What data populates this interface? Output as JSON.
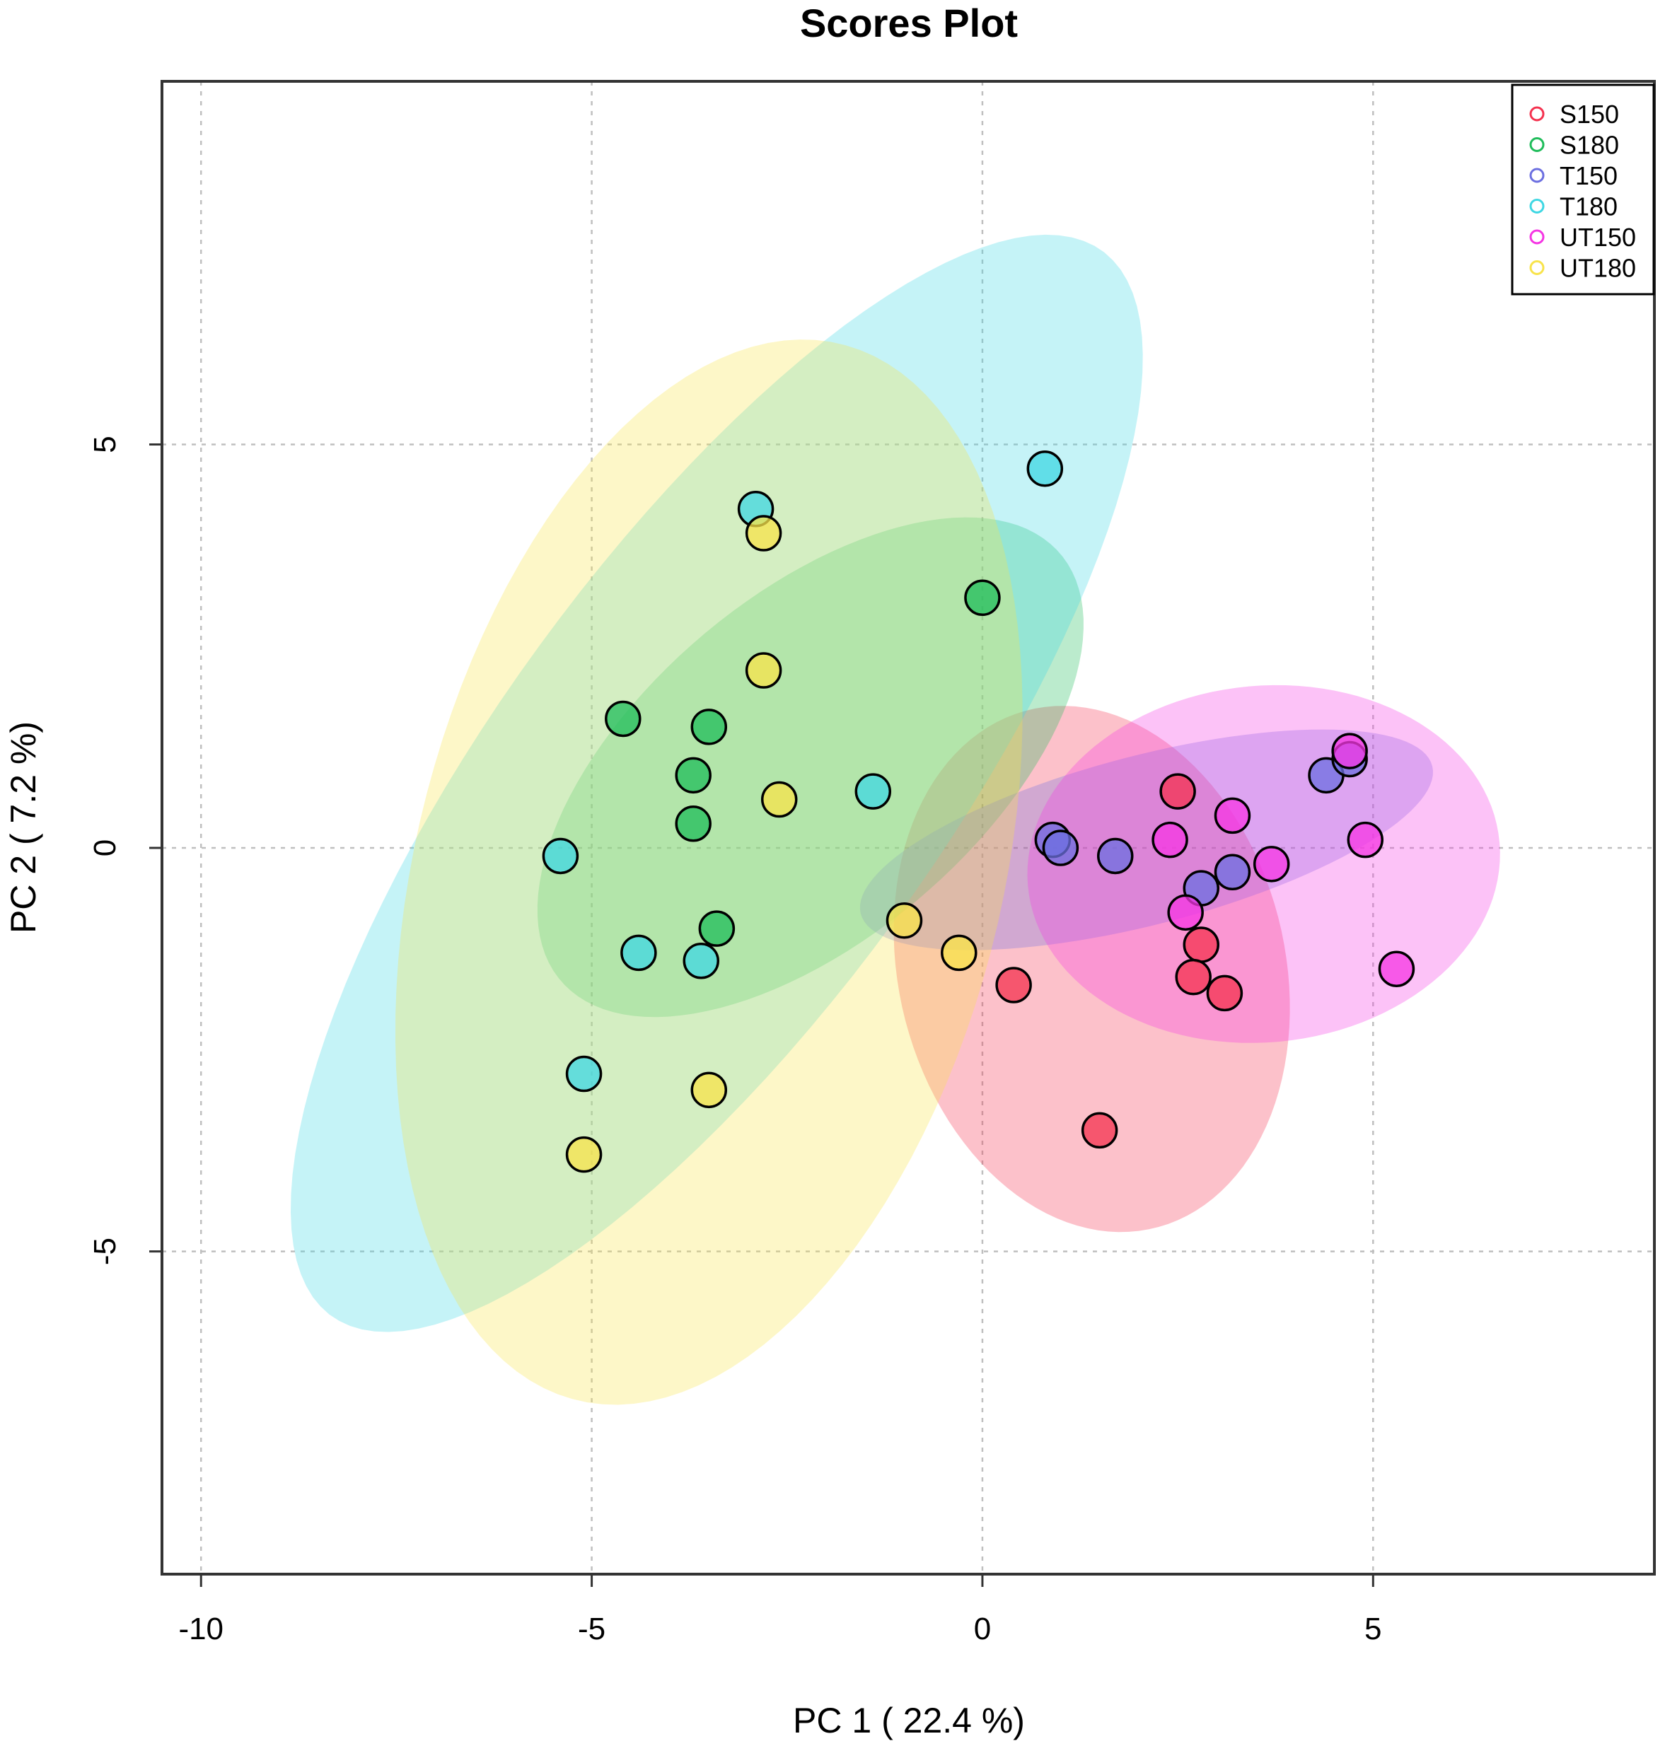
{
  "chart_data": {
    "type": "scatter",
    "title": "Scores Plot",
    "xlabel": "PC 1 ( 22.4 %)",
    "ylabel": "PC 2 ( 7.2 %)",
    "xlim": [
      -10.5,
      8.6
    ],
    "ylim": [
      -9.0,
      9.5
    ],
    "xticks": [
      -10,
      -5,
      0,
      5
    ],
    "yticks": [
      -5,
      0,
      5
    ],
    "xtick_labels": [
      "-10",
      "-5",
      "0",
      "5"
    ],
    "ytick_labels": [
      "-5",
      "0",
      "5"
    ],
    "grid": true,
    "legend_position": "top-right",
    "ellipse_opacity": 0.3,
    "series": [
      {
        "name": "S150",
        "color": "#f4324f",
        "x": [
          0.4,
          1.5,
          2.5,
          2.8,
          2.7,
          3.1
        ],
        "y": [
          -1.7,
          -3.5,
          0.7,
          -1.2,
          -1.6,
          -1.8
        ],
        "ellipse": {
          "cx": 1.4,
          "cy": -1.5,
          "rx": 3.31,
          "ry": 2.47,
          "angle": -75
        }
      },
      {
        "name": "S180",
        "color": "#1fbc5a",
        "x": [
          -4.6,
          -3.5,
          -3.7,
          -3.7,
          -3.4,
          0.0
        ],
        "y": [
          1.6,
          1.5,
          0.9,
          0.3,
          -1.0,
          3.1
        ],
        "ellipse": {
          "cx": -2.2,
          "cy": 1.0,
          "rx": 4.15,
          "ry": 2.14,
          "angle": 39
        }
      },
      {
        "name": "T150",
        "color": "#6c6fe0",
        "x": [
          0.9,
          1.0,
          1.7,
          2.8,
          3.2,
          4.4,
          4.7
        ],
        "y": [
          0.1,
          0.0,
          -0.1,
          -0.5,
          -0.3,
          0.9,
          1.1
        ],
        "ellipse": {
          "cx": 2.1,
          "cy": 0.1,
          "rx": 3.77,
          "ry": 1.05,
          "angle": 14
        }
      },
      {
        "name": "T180",
        "color": "#3fd7e3",
        "x": [
          -2.9,
          0.8,
          -1.4,
          -5.4,
          -4.4,
          -3.6,
          -5.1
        ],
        "y": [
          4.2,
          4.7,
          0.7,
          -0.1,
          -1.3,
          -1.4,
          -2.8
        ],
        "ellipse": {
          "cx": -3.4,
          "cy": 0.8,
          "rx": 8.24,
          "ry": 2.84,
          "angle": 53
        }
      },
      {
        "name": "UT150",
        "color": "#f535e3",
        "x": [
          4.7,
          2.4,
          3.2,
          3.7,
          4.9,
          2.6,
          5.3
        ],
        "y": [
          1.2,
          0.1,
          0.4,
          -0.2,
          0.1,
          -0.8,
          -1.5
        ],
        "ellipse": {
          "cx": 3.6,
          "cy": -0.2,
          "rx": 3.03,
          "ry": 2.21,
          "angle": 5
        }
      },
      {
        "name": "UT180",
        "color": "#f8e34a",
        "x": [
          -2.8,
          -2.8,
          -2.6,
          -1.0,
          -0.3,
          -3.5,
          -5.1
        ],
        "y": [
          3.9,
          2.2,
          0.6,
          -0.9,
          -1.3,
          -3.0,
          -3.8
        ],
        "ellipse": {
          "cx": -3.5,
          "cy": -0.3,
          "rx": 6.76,
          "ry": 3.74,
          "angle": 75
        }
      }
    ]
  }
}
